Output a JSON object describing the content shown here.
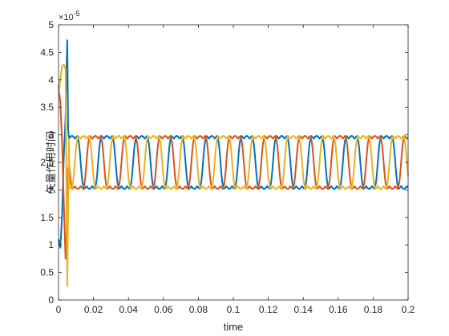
{
  "chart_data": {
    "type": "line",
    "title": "",
    "xlabel": "time",
    "ylabel": "矢量作用时间",
    "xlim": [
      0,
      0.2
    ],
    "ylim": [
      0,
      5
    ],
    "y_exponent_label": "×10",
    "y_exponent_power": "-5",
    "x_ticks": [
      0,
      0.02,
      0.04,
      0.06,
      0.08,
      0.1,
      0.12,
      0.14,
      0.16,
      0.18,
      0.2
    ],
    "x_tick_labels": [
      "0",
      "0.02",
      "0.04",
      "0.06",
      "0.08",
      "0.1",
      "0.12",
      "0.14",
      "0.16",
      "0.18",
      "0.2"
    ],
    "y_ticks": [
      0,
      0.5,
      1,
      1.5,
      2,
      2.5,
      3,
      3.5,
      4,
      4.5,
      5
    ],
    "y_tick_labels": [
      "0",
      "0.5",
      "1",
      "1.5",
      "2",
      "2.5",
      "3",
      "3.5",
      "4",
      "4.5",
      "5"
    ],
    "grid": false,
    "legend": "none",
    "steady_state": {
      "start": 0.006,
      "period": 0.02,
      "low": 2.07,
      "high": 2.93,
      "ripple": 0.05,
      "ripple_cycles": 6
    },
    "series": [
      {
        "color": "#0072BD",
        "phase": 0.0,
        "transient": [
          [
            0,
            1.1
          ],
          [
            0.001,
            0.95
          ],
          [
            0.002,
            1.5
          ],
          [
            0.003,
            2.6
          ],
          [
            0.004,
            3.3
          ],
          [
            0.0045,
            4.1
          ],
          [
            0.005,
            4.72
          ],
          [
            0.0055,
            3.1
          ],
          [
            0.006,
            2.93
          ]
        ]
      },
      {
        "color": "#D95319",
        "phase": 0.3333,
        "transient": [
          [
            0,
            3.9
          ],
          [
            0.001,
            3.6
          ],
          [
            0.002,
            2.9
          ],
          [
            0.003,
            1.8
          ],
          [
            0.004,
            0.75
          ],
          [
            0.0045,
            1.1
          ],
          [
            0.005,
            2.0
          ],
          [
            0.0055,
            2.4
          ],
          [
            0.006,
            2.07
          ]
        ]
      },
      {
        "color": "#EDB120",
        "phase": 0.6667,
        "transient": [
          [
            0,
            3.7
          ],
          [
            0.001,
            4.0
          ],
          [
            0.002,
            4.25
          ],
          [
            0.003,
            4.28
          ],
          [
            0.004,
            4.2
          ],
          [
            0.0045,
            2.2
          ],
          [
            0.005,
            0.25
          ],
          [
            0.0055,
            1.6
          ],
          [
            0.006,
            2.93
          ]
        ]
      }
    ]
  }
}
